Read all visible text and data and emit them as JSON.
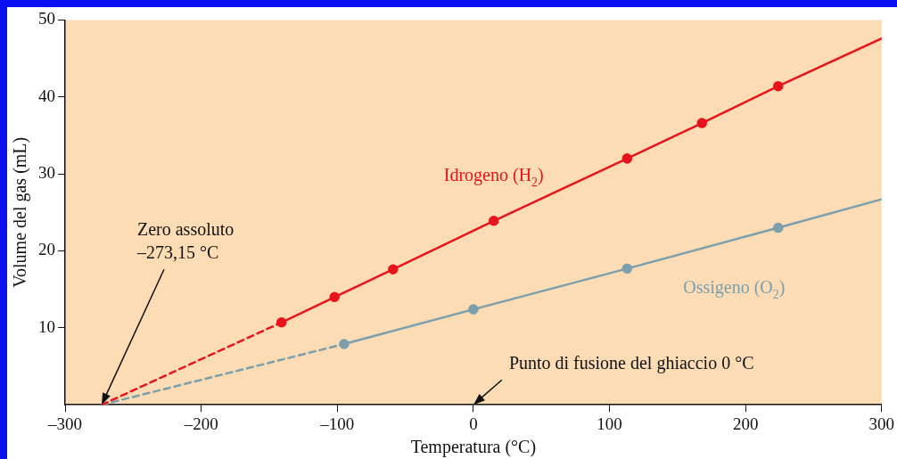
{
  "chart_data": {
    "type": "line",
    "xlabel": "Temperatura (°C)",
    "ylabel": "Volume del gas (mL)",
    "xlim": [
      -300,
      300
    ],
    "xticks": [
      {
        "value": -300,
        "label": "–300"
      },
      {
        "value": -200,
        "label": "–200"
      },
      {
        "value": -100,
        "label": "–100"
      },
      0,
      100,
      200,
      300
    ],
    "ylim": [
      0,
      50
    ],
    "yticks": [
      10,
      20,
      30,
      40,
      50
    ],
    "grid": false,
    "legend": false,
    "series": [
      {
        "color": "#e8141c",
        "x": [
          -273.15,
          -141
        ],
        "values": [
          0,
          10.7
        ],
        "line_style": "dashed"
      },
      {
        "color": "#7b9fad",
        "x": [
          -273.15,
          -95
        ],
        "values": [
          0,
          7.9
        ],
        "line_style": "dashed"
      },
      {
        "name": "Idrogeno (H$_{2}$)",
        "color": "#e8141c",
        "x": [
          -141,
          -102,
          -59,
          15,
          113,
          168,
          224
        ],
        "values": [
          10.7,
          14.0,
          17.6,
          23.9,
          32.0,
          36.6,
          41.4
        ],
        "line_style": "solid",
        "marker": "circle"
      },
      {
        "color": "#e8141c",
        "x": [
          224,
          300
        ],
        "values": [
          41.4,
          47.6
        ],
        "line_style": "solid"
      },
      {
        "name": "Ossigeno (O$_{2}$)",
        "color": "#7b9fad",
        "x": [
          -95,
          0,
          113,
          224
        ],
        "values": [
          7.9,
          12.4,
          17.7,
          23.0
        ],
        "line_style": "solid",
        "marker": "circle"
      },
      {
        "color": "#7b9fad",
        "x": [
          224,
          300
        ],
        "values": [
          23.0,
          26.7
        ],
        "line_style": "solid"
      }
    ],
    "annotations": [
      {
        "text": "Zero assoluto\n–273,15 °C",
        "x": -273.15,
        "y": 0
      },
      "Punto di fusione del ghiaccio 0 °C"
    ]
  }
}
